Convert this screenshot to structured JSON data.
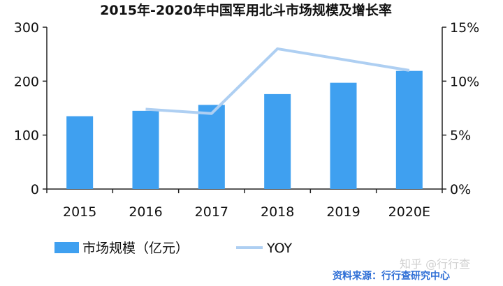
{
  "chart_data": {
    "type": "bar",
    "title": "2015年-2020年中国军用北斗市场规模及增长率",
    "categories": [
      "2015",
      "2016",
      "2017",
      "2018",
      "2019",
      "2020E"
    ],
    "series": [
      {
        "name": "市场规模（亿元）",
        "type": "bar",
        "axis": "left",
        "values": [
          135,
          145,
          156,
          176,
          197,
          219
        ],
        "color": "#3fa0f0"
      },
      {
        "name": "YOY",
        "type": "line",
        "axis": "right",
        "values": [
          null,
          7.4,
          7.0,
          13.0,
          null,
          11.0
        ],
        "color": "#aecff2"
      }
    ],
    "ylim": [
      0,
      300
    ],
    "y_ticks": [
      "0",
      "100",
      "200",
      "300"
    ],
    "y2lim": [
      0,
      15
    ],
    "y2_ticks": [
      "0%",
      "5%",
      "10%",
      "15%"
    ],
    "grid": false,
    "legend_position": "bottom"
  },
  "footer": {
    "source": "资料来源：行行查研究中心",
    "watermark": "知乎 @行行查"
  }
}
